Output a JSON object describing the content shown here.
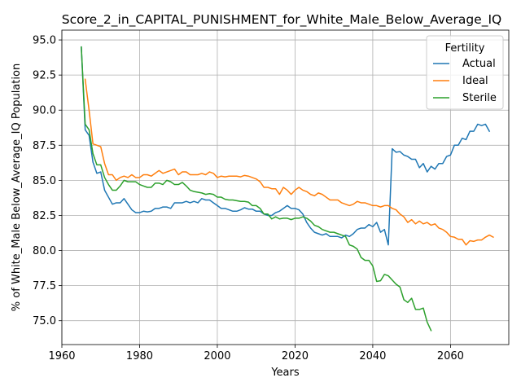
{
  "chart_data": {
    "type": "line",
    "title": "Score_2_in_CAPITAL_PUNISHMENT_for_White_Male_Below_Average_IQ",
    "xlabel": "Years",
    "ylabel": "% of White_Male Below_Average_IQ Population",
    "xlim": [
      1960,
      2075
    ],
    "ylim": [
      73.3,
      95.7
    ],
    "xticks": [
      1960,
      1980,
      2000,
      2020,
      2040,
      2060
    ],
    "yticks": [
      75.0,
      77.5,
      80.0,
      82.5,
      85.0,
      87.5,
      90.0,
      92.5,
      95.0
    ],
    "grid": true,
    "legend": {
      "title": "Fertility",
      "position": "top-right"
    },
    "series": [
      {
        "name": "Actual",
        "color": "#1f77b4",
        "points": [
          [
            1965,
            94.5
          ],
          [
            1966,
            88.6
          ],
          [
            1967,
            88.2
          ],
          [
            1968,
            86.3
          ],
          [
            1969,
            85.5
          ],
          [
            1970,
            85.6
          ],
          [
            1971,
            84.3
          ],
          [
            1972,
            83.8
          ],
          [
            1973,
            83.3
          ],
          [
            1974,
            83.4
          ],
          [
            1975,
            83.4
          ],
          [
            1976,
            83.7
          ],
          [
            1977,
            83.3
          ],
          [
            1978,
            82.9
          ],
          [
            1979,
            82.7
          ],
          [
            1980,
            82.7
          ],
          [
            1981,
            82.8
          ],
          [
            1982,
            82.75
          ],
          [
            1983,
            82.8
          ],
          [
            1984,
            83.0
          ],
          [
            1985,
            83.0
          ],
          [
            1986,
            83.1
          ],
          [
            1987,
            83.1
          ],
          [
            1988,
            83.0
          ],
          [
            1989,
            83.4
          ],
          [
            1990,
            83.4
          ],
          [
            1991,
            83.4
          ],
          [
            1992,
            83.5
          ],
          [
            1993,
            83.4
          ],
          [
            1994,
            83.5
          ],
          [
            1995,
            83.4
          ],
          [
            1996,
            83.7
          ],
          [
            1997,
            83.6
          ],
          [
            1998,
            83.6
          ],
          [
            1999,
            83.4
          ],
          [
            2000,
            83.2
          ],
          [
            2001,
            83.0
          ],
          [
            2002,
            83.0
          ],
          [
            2003,
            82.9
          ],
          [
            2004,
            82.8
          ],
          [
            2005,
            82.8
          ],
          [
            2006,
            82.9
          ],
          [
            2007,
            83.05
          ],
          [
            2008,
            82.95
          ],
          [
            2009,
            82.95
          ],
          [
            2010,
            82.8
          ],
          [
            2011,
            82.8
          ],
          [
            2012,
            82.6
          ],
          [
            2013,
            82.5
          ],
          [
            2014,
            82.5
          ],
          [
            2015,
            82.7
          ],
          [
            2016,
            82.8
          ],
          [
            2017,
            83.0
          ],
          [
            2018,
            83.2
          ],
          [
            2019,
            83.0
          ],
          [
            2020,
            83.0
          ],
          [
            2021,
            82.9
          ],
          [
            2022,
            82.6
          ],
          [
            2023,
            82.0
          ],
          [
            2024,
            81.6
          ],
          [
            2025,
            81.3
          ],
          [
            2026,
            81.2
          ],
          [
            2027,
            81.1
          ],
          [
            2028,
            81.2
          ],
          [
            2029,
            81.0
          ],
          [
            2030,
            81.0
          ],
          [
            2031,
            81.0
          ],
          [
            2032,
            80.9
          ],
          [
            2033,
            81.1
          ],
          [
            2034,
            81.0
          ],
          [
            2035,
            81.2
          ],
          [
            2036,
            81.5
          ],
          [
            2037,
            81.6
          ],
          [
            2038,
            81.6
          ],
          [
            2039,
            81.85
          ],
          [
            2040,
            81.7
          ],
          [
            2041,
            82.0
          ],
          [
            2042,
            81.3
          ],
          [
            2043,
            81.5
          ],
          [
            2044,
            80.4
          ],
          [
            2045,
            87.25
          ],
          [
            2046,
            87.0
          ],
          [
            2047,
            87.05
          ],
          [
            2048,
            86.8
          ],
          [
            2049,
            86.7
          ],
          [
            2050,
            86.5
          ],
          [
            2051,
            86.5
          ],
          [
            2052,
            85.9
          ],
          [
            2053,
            86.2
          ],
          [
            2054,
            85.6
          ],
          [
            2055,
            86.0
          ],
          [
            2056,
            85.8
          ],
          [
            2057,
            86.2
          ],
          [
            2058,
            86.2
          ],
          [
            2059,
            86.7
          ],
          [
            2060,
            86.8
          ],
          [
            2061,
            87.5
          ],
          [
            2062,
            87.5
          ],
          [
            2063,
            88.0
          ],
          [
            2064,
            87.9
          ],
          [
            2065,
            88.5
          ],
          [
            2066,
            88.5
          ],
          [
            2067,
            89.0
          ],
          [
            2068,
            88.9
          ],
          [
            2069,
            89.0
          ],
          [
            2070,
            88.5
          ]
        ]
      },
      {
        "name": "Ideal",
        "color": "#ff7f0e",
        "points": [
          [
            1966,
            92.2
          ],
          [
            1967,
            90.0
          ],
          [
            1968,
            87.6
          ],
          [
            1969,
            87.5
          ],
          [
            1970,
            87.4
          ],
          [
            1971,
            86.2
          ],
          [
            1972,
            85.4
          ],
          [
            1973,
            85.4
          ],
          [
            1974,
            85.0
          ],
          [
            1975,
            85.2
          ],
          [
            1976,
            85.3
          ],
          [
            1977,
            85.2
          ],
          [
            1978,
            85.4
          ],
          [
            1979,
            85.2
          ],
          [
            1980,
            85.2
          ],
          [
            1981,
            85.4
          ],
          [
            1982,
            85.4
          ],
          [
            1983,
            85.3
          ],
          [
            1984,
            85.5
          ],
          [
            1985,
            85.7
          ],
          [
            1986,
            85.5
          ],
          [
            1987,
            85.6
          ],
          [
            1988,
            85.7
          ],
          [
            1989,
            85.8
          ],
          [
            1990,
            85.4
          ],
          [
            1991,
            85.6
          ],
          [
            1992,
            85.6
          ],
          [
            1993,
            85.4
          ],
          [
            1994,
            85.4
          ],
          [
            1995,
            85.4
          ],
          [
            1996,
            85.5
          ],
          [
            1997,
            85.4
          ],
          [
            1998,
            85.6
          ],
          [
            1999,
            85.5
          ],
          [
            2000,
            85.2
          ],
          [
            2001,
            85.3
          ],
          [
            2002,
            85.25
          ],
          [
            2003,
            85.3
          ],
          [
            2004,
            85.3
          ],
          [
            2005,
            85.3
          ],
          [
            2006,
            85.25
          ],
          [
            2007,
            85.35
          ],
          [
            2008,
            85.3
          ],
          [
            2009,
            85.2
          ],
          [
            2010,
            85.1
          ],
          [
            2011,
            84.9
          ],
          [
            2012,
            84.5
          ],
          [
            2013,
            84.5
          ],
          [
            2014,
            84.4
          ],
          [
            2015,
            84.4
          ],
          [
            2016,
            84.0
          ],
          [
            2017,
            84.5
          ],
          [
            2018,
            84.3
          ],
          [
            2019,
            84.0
          ],
          [
            2020,
            84.3
          ],
          [
            2021,
            84.5
          ],
          [
            2022,
            84.3
          ],
          [
            2023,
            84.2
          ],
          [
            2024,
            84.0
          ],
          [
            2025,
            83.9
          ],
          [
            2026,
            84.1
          ],
          [
            2027,
            84.0
          ],
          [
            2028,
            83.8
          ],
          [
            2029,
            83.6
          ],
          [
            2030,
            83.6
          ],
          [
            2031,
            83.6
          ],
          [
            2032,
            83.4
          ],
          [
            2033,
            83.3
          ],
          [
            2034,
            83.2
          ],
          [
            2035,
            83.3
          ],
          [
            2036,
            83.5
          ],
          [
            2037,
            83.4
          ],
          [
            2038,
            83.4
          ],
          [
            2039,
            83.3
          ],
          [
            2040,
            83.2
          ],
          [
            2041,
            83.2
          ],
          [
            2042,
            83.1
          ],
          [
            2043,
            83.2
          ],
          [
            2044,
            83.2
          ],
          [
            2045,
            83.0
          ],
          [
            2046,
            82.9
          ],
          [
            2047,
            82.6
          ],
          [
            2048,
            82.4
          ],
          [
            2049,
            82.0
          ],
          [
            2050,
            82.2
          ],
          [
            2051,
            81.9
          ],
          [
            2052,
            82.1
          ],
          [
            2053,
            81.9
          ],
          [
            2054,
            82.0
          ],
          [
            2055,
            81.8
          ],
          [
            2056,
            81.9
          ],
          [
            2057,
            81.6
          ],
          [
            2058,
            81.5
          ],
          [
            2059,
            81.3
          ],
          [
            2060,
            81.0
          ],
          [
            2061,
            80.95
          ],
          [
            2062,
            80.8
          ],
          [
            2063,
            80.8
          ],
          [
            2064,
            80.4
          ],
          [
            2065,
            80.7
          ],
          [
            2066,
            80.65
          ],
          [
            2067,
            80.75
          ],
          [
            2068,
            80.75
          ],
          [
            2069,
            80.95
          ],
          [
            2070,
            81.1
          ],
          [
            2071,
            80.95
          ]
        ]
      },
      {
        "name": "Sterile",
        "color": "#2ca02c",
        "points": [
          [
            1965,
            94.5
          ],
          [
            1966,
            89.0
          ],
          [
            1967,
            88.6
          ],
          [
            1968,
            86.9
          ],
          [
            1969,
            86.1
          ],
          [
            1970,
            86.1
          ],
          [
            1971,
            85.2
          ],
          [
            1972,
            84.7
          ],
          [
            1973,
            84.3
          ],
          [
            1974,
            84.3
          ],
          [
            1975,
            84.6
          ],
          [
            1976,
            85.0
          ],
          [
            1977,
            84.9
          ],
          [
            1978,
            84.9
          ],
          [
            1979,
            84.9
          ],
          [
            1980,
            84.7
          ],
          [
            1981,
            84.6
          ],
          [
            1982,
            84.5
          ],
          [
            1983,
            84.5
          ],
          [
            1984,
            84.8
          ],
          [
            1985,
            84.8
          ],
          [
            1986,
            84.7
          ],
          [
            1987,
            85.0
          ],
          [
            1988,
            84.9
          ],
          [
            1989,
            84.7
          ],
          [
            1990,
            84.7
          ],
          [
            1991,
            84.85
          ],
          [
            1992,
            84.6
          ],
          [
            1993,
            84.3
          ],
          [
            1994,
            84.2
          ],
          [
            1995,
            84.15
          ],
          [
            1996,
            84.1
          ],
          [
            1997,
            84.0
          ],
          [
            1998,
            84.05
          ],
          [
            1999,
            84.0
          ],
          [
            2000,
            83.8
          ],
          [
            2001,
            83.8
          ],
          [
            2002,
            83.65
          ],
          [
            2003,
            83.6
          ],
          [
            2004,
            83.6
          ],
          [
            2005,
            83.55
          ],
          [
            2006,
            83.5
          ],
          [
            2007,
            83.5
          ],
          [
            2008,
            83.45
          ],
          [
            2009,
            83.2
          ],
          [
            2010,
            83.2
          ],
          [
            2011,
            83.0
          ],
          [
            2012,
            82.6
          ],
          [
            2013,
            82.6
          ],
          [
            2014,
            82.25
          ],
          [
            2015,
            82.4
          ],
          [
            2016,
            82.25
          ],
          [
            2017,
            82.3
          ],
          [
            2018,
            82.3
          ],
          [
            2019,
            82.2
          ],
          [
            2020,
            82.3
          ],
          [
            2021,
            82.3
          ],
          [
            2022,
            82.4
          ],
          [
            2023,
            82.3
          ],
          [
            2024,
            82.1
          ],
          [
            2025,
            81.8
          ],
          [
            2026,
            81.7
          ],
          [
            2027,
            81.5
          ],
          [
            2028,
            81.4
          ],
          [
            2029,
            81.3
          ],
          [
            2030,
            81.3
          ],
          [
            2031,
            81.2
          ],
          [
            2032,
            81.1
          ],
          [
            2033,
            81.0
          ],
          [
            2034,
            80.4
          ],
          [
            2035,
            80.3
          ],
          [
            2036,
            80.1
          ],
          [
            2037,
            79.5
          ],
          [
            2038,
            79.3
          ],
          [
            2039,
            79.3
          ],
          [
            2040,
            78.9
          ],
          [
            2041,
            77.8
          ],
          [
            2042,
            77.85
          ],
          [
            2043,
            78.3
          ],
          [
            2044,
            78.2
          ],
          [
            2045,
            77.9
          ],
          [
            2046,
            77.6
          ],
          [
            2047,
            77.4
          ],
          [
            2048,
            76.5
          ],
          [
            2049,
            76.3
          ],
          [
            2050,
            76.6
          ],
          [
            2051,
            75.8
          ],
          [
            2052,
            75.8
          ],
          [
            2053,
            75.9
          ],
          [
            2054,
            74.9
          ],
          [
            2055,
            74.3
          ]
        ]
      }
    ]
  }
}
